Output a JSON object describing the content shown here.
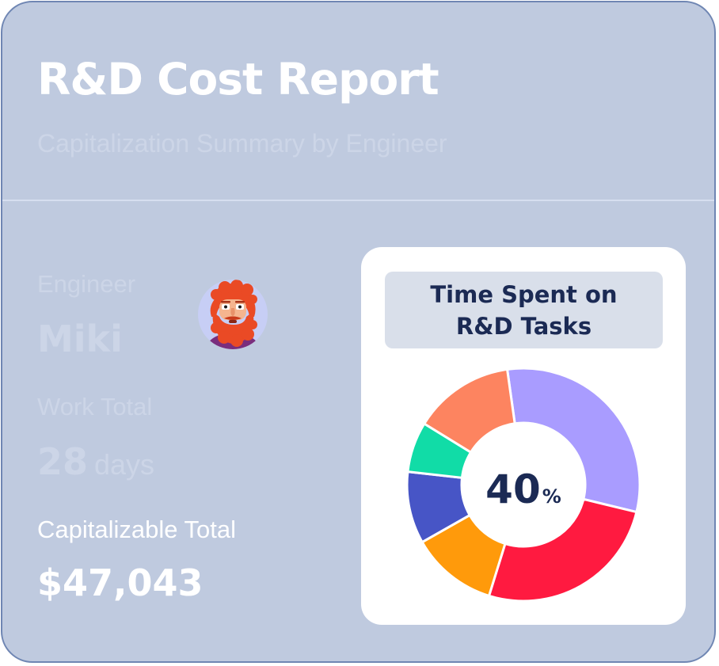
{
  "header": {
    "title": "R&D Cost Report",
    "subtitle": "Capitalization Summary by Engineer"
  },
  "engineer": {
    "label": "Engineer",
    "name": "Miki",
    "avatar_icon": "bearded-man-avatar-icon"
  },
  "work_total": {
    "label": "Work Total",
    "value": "28",
    "unit": "days"
  },
  "capitalizable_total": {
    "label": "Capitalizable Total",
    "value": "$47,043"
  },
  "chart_data": {
    "type": "pie",
    "title": "Time Spent on R&D Tasks",
    "center_value": "40",
    "center_unit": "%",
    "donut": true,
    "slices": [
      {
        "value": 31,
        "color": "#a99cff"
      },
      {
        "value": 26,
        "color": "#ff1a40"
      },
      {
        "value": 12,
        "color": "#ff9a0b"
      },
      {
        "value": 10,
        "color": "#4755c6"
      },
      {
        "value": 7,
        "color": "#11dca7"
      },
      {
        "value": 14,
        "color": "#fd8460"
      }
    ]
  },
  "colors": {
    "card_background": "#bfcadf",
    "card_border": "#6f86b3",
    "heading_text": "#1b2a54"
  }
}
